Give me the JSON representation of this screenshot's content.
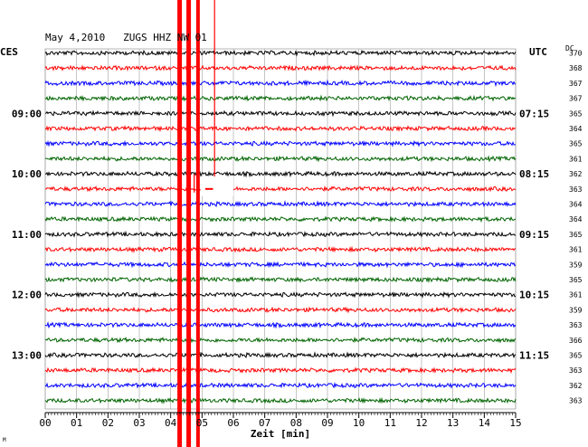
{
  "chart_data": {
    "type": "line",
    "title": "May 4,2010   ZUGS HHZ NW 01",
    "left_label": "CES",
    "right_label": "UTC",
    "dc_label": "DC",
    "xlabel": "Zeit [min]",
    "xlim": [
      0,
      15
    ],
    "x_ticks": [
      "00",
      "01",
      "02",
      "03",
      "04",
      "05",
      "06",
      "07",
      "08",
      "09",
      "10",
      "11",
      "12",
      "13",
      "14",
      "15"
    ],
    "trace_colors": [
      "#000000",
      "#ff0000",
      "#0000ff",
      "#006400"
    ],
    "left_hour_labels": [
      {
        "row": 4,
        "label": "09:00"
      },
      {
        "row": 8,
        "label": "10:00"
      },
      {
        "row": 12,
        "label": "11:00"
      },
      {
        "row": 16,
        "label": "12:00"
      },
      {
        "row": 20,
        "label": "13:00"
      }
    ],
    "right_hour_labels": [
      {
        "row": 4,
        "label": "07:15"
      },
      {
        "row": 8,
        "label": "08:15"
      },
      {
        "row": 12,
        "label": "09:15"
      },
      {
        "row": 16,
        "label": "10:15"
      },
      {
        "row": 20,
        "label": "11:15"
      }
    ],
    "dc_values": [
      "370",
      "368",
      "367",
      "367",
      "365",
      "364",
      "365",
      "361",
      "362",
      "363",
      "364",
      "364",
      "365",
      "361",
      "359",
      "365",
      "361",
      "359",
      "363",
      "366",
      "365",
      "363",
      "362",
      "363"
    ],
    "event": {
      "start_minute": 4.3,
      "end_minute": 4.9,
      "color": "#ff0000"
    },
    "footnote": "M"
  }
}
